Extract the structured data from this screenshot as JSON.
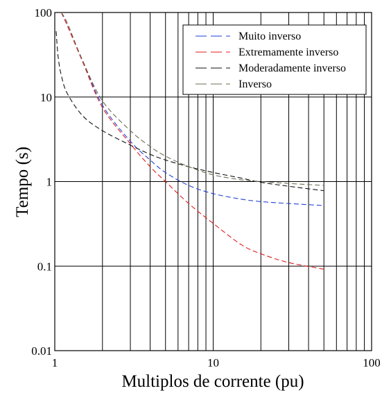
{
  "chart_data": {
    "type": "line",
    "xscale": "log",
    "yscale": "log",
    "xlim": [
      1,
      100
    ],
    "ylim": [
      0.01,
      100
    ],
    "xlabel": "Multiplos de corrente (pu)",
    "ylabel": "Tempo (s)",
    "xticks": [
      "1",
      "10",
      "100"
    ],
    "yticks": [
      "0.01",
      "0.1",
      "1",
      "10",
      "100"
    ],
    "grid": true,
    "legend_position": "top-right",
    "series": [
      {
        "name": "Muito inverso",
        "color": "#1f3fd6",
        "style": "dashed",
        "x": [
          1.1,
          1.2,
          1.5,
          2,
          3,
          4,
          5,
          7,
          10,
          15,
          20,
          30,
          50
        ],
        "y": [
          100,
          70,
          27,
          8.0,
          3.0,
          1.8,
          1.28,
          0.9,
          0.72,
          0.62,
          0.58,
          0.55,
          0.52
        ]
      },
      {
        "name": "Extremamente inverso",
        "color": "#e01b1b",
        "style": "dashed",
        "x": [
          1.1,
          1.2,
          1.5,
          2,
          3,
          4,
          5,
          7,
          10,
          15,
          20,
          30,
          50
        ],
        "y": [
          100,
          70,
          26,
          7.5,
          2.8,
          1.5,
          1.0,
          0.55,
          0.32,
          0.18,
          0.14,
          0.11,
          0.092
        ]
      },
      {
        "name": "Moderadamente inverso",
        "color": "#111111",
        "style": "dashed",
        "x": [
          1.02,
          1.05,
          1.1,
          1.2,
          1.5,
          2,
          3,
          4,
          5,
          7,
          10,
          15,
          20,
          30,
          50
        ],
        "y": [
          60,
          30,
          18,
          11,
          6.0,
          4.0,
          2.7,
          2.1,
          1.8,
          1.5,
          1.28,
          1.1,
          0.98,
          0.88,
          0.78
        ]
      },
      {
        "name": "Inverso",
        "color": "#6b6b52",
        "style": "dashed",
        "x": [
          1.1,
          1.2,
          1.5,
          2,
          3,
          4,
          5,
          7,
          10,
          15,
          20,
          30,
          50
        ],
        "y": [
          100,
          75,
          27,
          9.0,
          4.0,
          2.6,
          2.0,
          1.5,
          1.2,
          1.05,
          1.0,
          0.95,
          0.9
        ]
      }
    ]
  }
}
